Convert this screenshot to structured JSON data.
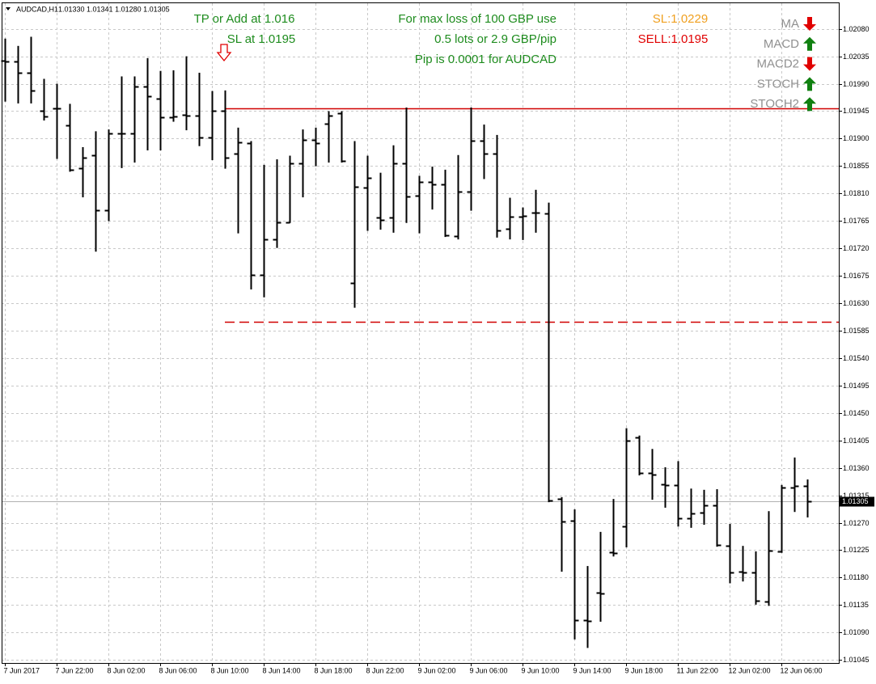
{
  "chart_data": {
    "type": "ohlc",
    "title": "AUDCAD,H1",
    "ohlc_summary": "1.01330 1.01341 1.01280 1.01305",
    "color": "#000000",
    "grid": true,
    "categories": [
      "7 Jun 2017",
      null,
      null,
      null,
      "7 Jun 22:00",
      null,
      null,
      null,
      "8 Jun 02:00",
      null,
      null,
      null,
      "8 Jun 06:00",
      null,
      null,
      null,
      "8 Jun 10:00",
      null,
      null,
      null,
      "8 Jun 14:00",
      null,
      null,
      null,
      "8 Jun 18:00",
      null,
      null,
      null,
      "8 Jun 22:00",
      null,
      null,
      null,
      "9 Jun 02:00",
      null,
      null,
      null,
      "9 Jun 06:00",
      null,
      null,
      null,
      "9 Jun 10:00",
      null,
      null,
      null,
      "9 Jun 14:00",
      null,
      null,
      null,
      "9 Jun 18:00",
      null,
      null,
      null,
      "11 Jun 22:00",
      null,
      null,
      null,
      "12 Jun 02:00",
      null,
      null,
      null,
      "12 Jun 06:00",
      null,
      null
    ],
    "open": [
      1.02028,
      1.02026,
      1.02008,
      1.01946,
      1.01949,
      1.01922,
      1.01852,
      1.01873,
      1.01783,
      1.01909,
      1.01909,
      1.01986,
      1.01966,
      1.01935,
      1.01939,
      1.01938,
      1.01902,
      1.01946,
      1.01876,
      1.01893,
      1.01677,
      1.01735,
      1.01763,
      1.0186,
      1.01898,
      1.01925,
      1.01942,
      1.01663,
      1.0182,
      1.0177,
      1.0177,
      1.0186,
      1.01807,
      1.01829,
      1.01825,
      1.0174,
      1.01813,
      1.01896,
      1.01876,
      1.01752,
      1.01772,
      1.01779,
      1.01777,
      1.01309,
      1.01273,
      1.0111,
      1.01155,
      1.01222,
      1.01264,
      1.0141,
      1.01352,
      1.01333,
      1.01332,
      1.01277,
      1.01287,
      1.01299,
      1.01232,
      1.0119,
      1.01188,
      1.01141,
      1.01223,
      1.01328,
      1.0133
    ],
    "high": [
      1.02064,
      1.02052,
      1.02067,
      1.01998,
      1.0199,
      1.01957,
      1.01886,
      1.01912,
      1.01915,
      1.02002,
      1.02002,
      1.02032,
      1.02011,
      1.02012,
      1.02035,
      1.02008,
      1.01978,
      1.01979,
      1.01918,
      1.01896,
      1.01857,
      1.01866,
      1.01872,
      1.01915,
      1.01918,
      1.01945,
      1.01945,
      1.01896,
      1.01872,
      1.01844,
      1.01889,
      1.01951,
      1.01839,
      1.01854,
      1.01849,
      1.01873,
      1.01951,
      1.01923,
      1.01906,
      1.01803,
      1.01787,
      1.01816,
      1.01795,
      1.01312,
      1.01292,
      1.01199,
      1.01255,
      1.01309,
      1.01425,
      1.01413,
      1.01391,
      1.01361,
      1.01371,
      1.01326,
      1.01324,
      1.01325,
      1.01268,
      1.01232,
      1.01223,
      1.01289,
      1.01332,
      1.01377,
      1.01341
    ],
    "low": [
      1.01962,
      1.01959,
      1.01959,
      1.01931,
      1.01868,
      1.01847,
      1.01805,
      1.01716,
      1.01766,
      1.01853,
      1.01862,
      1.01882,
      1.01882,
      1.01929,
      1.01915,
      1.01889,
      1.01866,
      1.01852,
      1.01746,
      1.01654,
      1.01641,
      1.01722,
      1.01763,
      1.01805,
      1.01856,
      1.01862,
      1.01862,
      1.01624,
      1.0175,
      1.01752,
      1.01747,
      1.01763,
      1.01746,
      1.01785,
      1.0174,
      1.01736,
      1.01783,
      1.01835,
      1.01739,
      1.01736,
      1.01735,
      1.01747,
      1.01305,
      1.01191,
      1.0108,
      1.01066,
      1.01109,
      1.01216,
      1.01231,
      1.01349,
      1.01309,
      1.01296,
      1.01265,
      1.01263,
      1.01268,
      1.01232,
      1.01172,
      1.01175,
      1.01137,
      1.01135,
      1.01222,
      1.01289,
      1.0128
    ],
    "close": [
      1.02026,
      1.02008,
      1.01979,
      1.01937,
      1.01949,
      1.01849,
      1.01869,
      1.01783,
      1.01909,
      1.01909,
      1.01986,
      1.01969,
      1.01935,
      1.01937,
      1.01938,
      1.01902,
      1.01946,
      1.01869,
      1.01894,
      1.01677,
      1.01735,
      1.01762,
      1.0186,
      1.01898,
      1.01892,
      1.01938,
      1.01864,
      1.01821,
      1.01836,
      1.01767,
      1.0186,
      1.01805,
      1.01829,
      1.01825,
      1.01742,
      1.01813,
      1.01896,
      1.01876,
      1.0175,
      1.01772,
      1.01773,
      1.01779,
      1.01307,
      1.01272,
      1.0111,
      1.01109,
      1.01154,
      1.0122,
      1.01405,
      1.01352,
      1.01349,
      1.01332,
      1.01277,
      1.01285,
      1.01299,
      1.01234,
      1.01188,
      1.01188,
      1.01142,
      1.01224,
      1.01328,
      1.0133,
      1.01305
    ],
    "ylim": [
      1.0104,
      1.02122
    ],
    "yticks": [
      {
        "value": 1.0208,
        "label": "1.02080"
      },
      {
        "value": 1.02035,
        "label": "1.02035"
      },
      {
        "value": 1.0199,
        "label": "1.01990"
      },
      {
        "value": 1.01945,
        "label": "1.01945"
      },
      {
        "value": 1.019,
        "label": "1.01900"
      },
      {
        "value": 1.01855,
        "label": "1.01855"
      },
      {
        "value": 1.0181,
        "label": "1.01810"
      },
      {
        "value": 1.01765,
        "label": "1.01765"
      },
      {
        "value": 1.0172,
        "label": "1.01720"
      },
      {
        "value": 1.01675,
        "label": "1.01675"
      },
      {
        "value": 1.0163,
        "label": "1.01630"
      },
      {
        "value": 1.01585,
        "label": "1.01585"
      },
      {
        "value": 1.0154,
        "label": "1.01540"
      },
      {
        "value": 1.01495,
        "label": "1.01495"
      },
      {
        "value": 1.0145,
        "label": "1.01450"
      },
      {
        "value": 1.01405,
        "label": "1.01405"
      },
      {
        "value": 1.0136,
        "label": "1.01360"
      },
      {
        "value": 1.01315,
        "label": "1.01315"
      },
      {
        "value": 1.0127,
        "label": "1.01270"
      },
      {
        "value": 1.01225,
        "label": "1.01225"
      },
      {
        "value": 1.0118,
        "label": "1.01180"
      },
      {
        "value": 1.01135,
        "label": "1.01135"
      },
      {
        "value": 1.0109,
        "label": "1.01090"
      },
      {
        "value": 1.01045,
        "label": "1.01045"
      }
    ],
    "levels": [
      {
        "value": 1.0195,
        "color": "#d00000",
        "style": "solid"
      },
      {
        "value": 1.016,
        "color": "#d00000",
        "style": "dashed"
      }
    ],
    "last_price": 1.01305,
    "annotations": [
      {
        "text": "TP or Add at 1.016",
        "color": "#1e8c1e"
      },
      {
        "text": "SL at 1.0195",
        "color": "#1e8c1e"
      },
      {
        "text": "For max loss of 100 GBP use",
        "color": "#1e8c1e"
      },
      {
        "text": "0.5 lots or 2.9 GBP/pip",
        "color": "#1e8c1e"
      },
      {
        "text": "Pip is 0.0001 for AUDCAD",
        "color": "#1e8c1e"
      },
      {
        "text": "SL:1.0229",
        "color": "#f0a020"
      },
      {
        "text": "SELL:1.0195",
        "color": "#e00000"
      }
    ],
    "indicators": [
      {
        "name": "MA",
        "signal": "down",
        "color": "#e00000"
      },
      {
        "name": "MACD",
        "signal": "up",
        "color": "#108010"
      },
      {
        "name": "MACD2",
        "signal": "down",
        "color": "#e00000"
      },
      {
        "name": "STOCH",
        "signal": "up",
        "color": "#108010"
      },
      {
        "name": "STOCH2",
        "signal": "up",
        "color": "#108010"
      }
    ]
  }
}
